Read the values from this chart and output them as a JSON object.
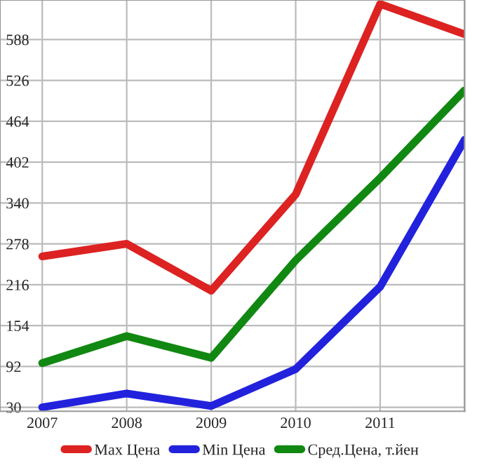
{
  "chart_data": {
    "type": "line",
    "x": [
      2007,
      2008,
      2009,
      2010,
      2011,
      2012
    ],
    "series": [
      {
        "name": "Max Цена",
        "color": "#dd2222",
        "values": [
          259,
          278,
          207,
          353,
          642,
          596
        ]
      },
      {
        "name": "Min Цена",
        "color": "#2222dd",
        "values": [
          30,
          51,
          32,
          88,
          213,
          436
        ]
      },
      {
        "name": "Сред.Цена, т.йен",
        "color": "#118811",
        "values": [
          97,
          138,
          105,
          253,
          378,
          511
        ]
      }
    ],
    "xlim": [
      2006.5,
      2012
    ],
    "xticks": [
      2007,
      2008,
      2009,
      2010,
      2011,
      {
        "value": 2012,
        "label": null
      }
    ],
    "ylim": [
      24,
      648
    ],
    "yticks": [
      30,
      92,
      154,
      216,
      278,
      340,
      402,
      464,
      526,
      588
    ],
    "grid": true,
    "legend": "bottom",
    "marker": "none",
    "line_style": "solid"
  }
}
